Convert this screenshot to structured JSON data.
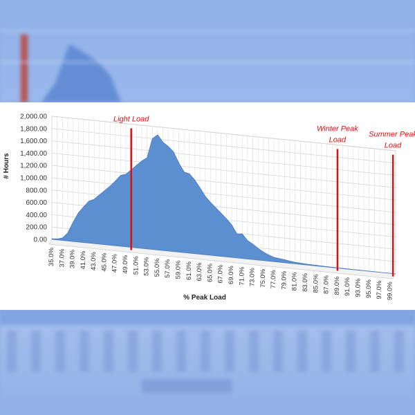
{
  "chart_data": {
    "type": "area",
    "title": "",
    "xlabel": "% Peak Load",
    "ylabel": "# Hours",
    "ylim": [
      0,
      2000
    ],
    "y_ticks": [
      "0.00",
      "200.00",
      "400.00",
      "600.00",
      "800.00",
      "1,000.00",
      "1,200.00",
      "1,400.00",
      "1,600.00",
      "1,800.00",
      "2,000.00"
    ],
    "x": [
      35,
      36,
      37,
      38,
      39,
      40,
      41,
      42,
      43,
      44,
      45,
      46,
      47,
      48,
      49,
      50,
      51,
      52,
      53,
      54,
      55,
      56,
      57,
      58,
      59,
      60,
      61,
      62,
      63,
      64,
      65,
      66,
      67,
      68,
      69,
      70,
      71,
      72,
      73,
      74,
      75,
      76,
      77,
      78,
      79,
      80,
      81,
      82,
      83,
      84,
      85,
      86,
      87,
      88,
      89,
      90,
      91,
      92,
      93,
      94,
      95,
      96,
      97,
      98,
      99,
      100
    ],
    "x_tick_labels": [
      "35.0%",
      "37.0%",
      "39.0%",
      "41.0%",
      "43.0%",
      "45.0%",
      "47.0%",
      "49.0%",
      "51.0%",
      "53.0%",
      "55.0%",
      "57.0%",
      "59.0%",
      "61.0%",
      "63.0%",
      "65.0%",
      "67.0%",
      "69.0%",
      "71.0%",
      "73.0%",
      "75.0%",
      "77.0%",
      "79.0%",
      "81.0%",
      "83.0%",
      "85.0%",
      "87.0%",
      "89.0%",
      "91.0%",
      "93.0%",
      "95.0%",
      "97.0%",
      "99.0%"
    ],
    "series": [
      {
        "values": [
          10,
          15,
          40,
          130,
          310,
          470,
          580,
          680,
          720,
          800,
          880,
          960,
          1050,
          1150,
          1180,
          1260,
          1340,
          1420,
          1480,
          1800,
          1870,
          1760,
          1700,
          1620,
          1450,
          1310,
          1290,
          1200,
          1080,
          950,
          860,
          780,
          700,
          620,
          530,
          390,
          400,
          300,
          250,
          190,
          140,
          100,
          70,
          60,
          50,
          35,
          25,
          20,
          15,
          12,
          10,
          8,
          6,
          5,
          4,
          3,
          3,
          2,
          2,
          1,
          1,
          1,
          1,
          0,
          0,
          0
        ],
        "color": "#5b8fd0"
      }
    ],
    "annotations": [
      {
        "label": "Light Load",
        "x": 50,
        "color": "#e01010"
      },
      {
        "label": "Winter Peak Load",
        "x": 89,
        "color": "#e01010"
      },
      {
        "label": "Summer Peak Load",
        "x": 99.5,
        "color": "#e01010"
      }
    ],
    "grid": true
  }
}
